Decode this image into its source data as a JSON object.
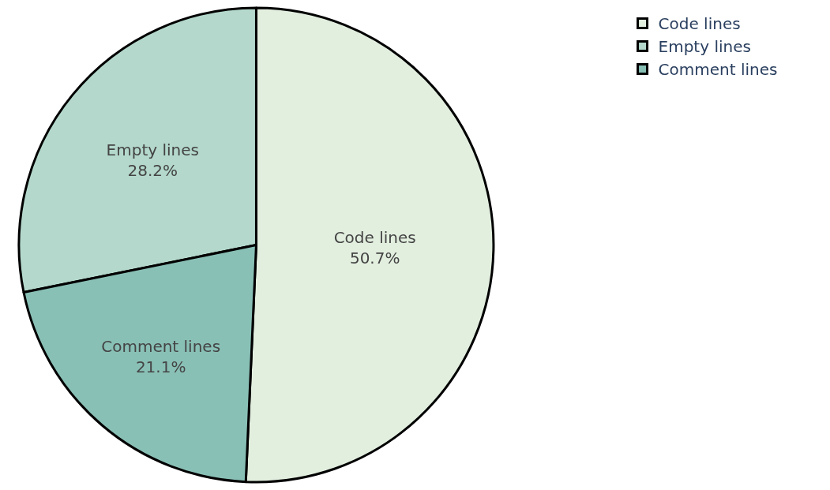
{
  "chart_data": {
    "type": "pie",
    "categories": [
      "Code lines",
      "Empty lines",
      "Comment lines"
    ],
    "values": [
      50.7,
      28.2,
      21.1
    ],
    "value_labels": [
      "50.7%",
      "28.2%",
      "21.1%"
    ],
    "colors": [
      "#e2efdf",
      "#b4d9cc",
      "#89c0b6"
    ],
    "legend": "top right"
  }
}
